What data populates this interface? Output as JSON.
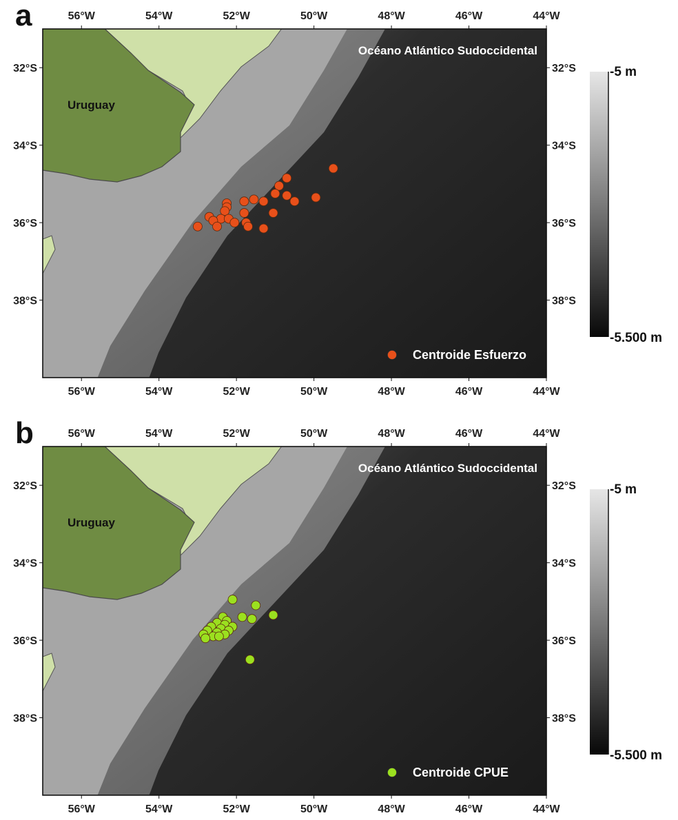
{
  "chart_data": [
    {
      "type": "scatter",
      "panel_label": "a",
      "region_label": "Océano Atlántico Sudoccidental",
      "country_label": "Uruguay",
      "xlim": [
        -57,
        -44
      ],
      "ylim": [
        -40,
        -31
      ],
      "x_ticks": [
        {
          "value": -56,
          "label": "56°W"
        },
        {
          "value": -54,
          "label": "54°W"
        },
        {
          "value": -52,
          "label": "52°W"
        },
        {
          "value": -50,
          "label": "50°W"
        },
        {
          "value": -48,
          "label": "48°W"
        },
        {
          "value": -46,
          "label": "46°W"
        },
        {
          "value": -44,
          "label": "44°W"
        }
      ],
      "y_ticks": [
        {
          "value": -32,
          "label": "32°S"
        },
        {
          "value": -34,
          "label": "34°S"
        },
        {
          "value": -36,
          "label": "36°S"
        },
        {
          "value": -38,
          "label": "38°S"
        }
      ],
      "colorbar": {
        "top_label": "-5 m",
        "bottom_label": "-5.500 m"
      },
      "series": [
        {
          "name": "Centroide Esfuerzo",
          "color": "#e8501a",
          "points": [
            {
              "x": -49.5,
              "y": -34.6
            },
            {
              "x": -50.7,
              "y": -34.85
            },
            {
              "x": -50.9,
              "y": -35.05
            },
            {
              "x": -51.0,
              "y": -35.25
            },
            {
              "x": -50.7,
              "y": -35.3
            },
            {
              "x": -49.95,
              "y": -35.35
            },
            {
              "x": -50.5,
              "y": -35.45
            },
            {
              "x": -51.3,
              "y": -35.45
            },
            {
              "x": -51.55,
              "y": -35.4
            },
            {
              "x": -51.8,
              "y": -35.45
            },
            {
              "x": -52.25,
              "y": -35.5
            },
            {
              "x": -52.25,
              "y": -35.6
            },
            {
              "x": -52.3,
              "y": -35.7
            },
            {
              "x": -51.8,
              "y": -35.75
            },
            {
              "x": -51.05,
              "y": -35.75
            },
            {
              "x": -52.7,
              "y": -35.85
            },
            {
              "x": -52.4,
              "y": -35.9
            },
            {
              "x": -52.2,
              "y": -35.9
            },
            {
              "x": -52.6,
              "y": -35.95
            },
            {
              "x": -52.05,
              "y": -36.0
            },
            {
              "x": -51.75,
              "y": -36.0
            },
            {
              "x": -53.0,
              "y": -36.1
            },
            {
              "x": -52.5,
              "y": -36.1
            },
            {
              "x": -51.7,
              "y": -36.1
            },
            {
              "x": -51.3,
              "y": -36.15
            }
          ]
        }
      ]
    },
    {
      "type": "scatter",
      "panel_label": "b",
      "region_label": "Océano Atlántico Sudoccidental",
      "country_label": "Uruguay",
      "xlim": [
        -57,
        -44
      ],
      "ylim": [
        -40,
        -31
      ],
      "x_ticks": [
        {
          "value": -56,
          "label": "56°W"
        },
        {
          "value": -54,
          "label": "54°W"
        },
        {
          "value": -52,
          "label": "52°W"
        },
        {
          "value": -50,
          "label": "50°W"
        },
        {
          "value": -48,
          "label": "48°W"
        },
        {
          "value": -46,
          "label": "46°W"
        },
        {
          "value": -44,
          "label": "44°W"
        }
      ],
      "y_ticks": [
        {
          "value": -32,
          "label": "32°S"
        },
        {
          "value": -34,
          "label": "34°S"
        },
        {
          "value": -36,
          "label": "36°S"
        },
        {
          "value": -38,
          "label": "38°S"
        }
      ],
      "colorbar": {
        "top_label": "-5 m",
        "bottom_label": "-5.500 m"
      },
      "series": [
        {
          "name": "Centroide CPUE",
          "color": "#9be01f",
          "points": [
            {
              "x": -52.1,
              "y": -34.95
            },
            {
              "x": -51.5,
              "y": -35.1
            },
            {
              "x": -51.05,
              "y": -35.35
            },
            {
              "x": -51.85,
              "y": -35.4
            },
            {
              "x": -51.6,
              "y": -35.45
            },
            {
              "x": -52.35,
              "y": -35.4
            },
            {
              "x": -52.25,
              "y": -35.5
            },
            {
              "x": -52.5,
              "y": -35.55
            },
            {
              "x": -52.3,
              "y": -35.6
            },
            {
              "x": -52.1,
              "y": -35.65
            },
            {
              "x": -52.65,
              "y": -35.65
            },
            {
              "x": -52.4,
              "y": -35.7
            },
            {
              "x": -52.2,
              "y": -35.75
            },
            {
              "x": -52.75,
              "y": -35.75
            },
            {
              "x": -52.5,
              "y": -35.8
            },
            {
              "x": -52.3,
              "y": -35.85
            },
            {
              "x": -52.85,
              "y": -35.85
            },
            {
              "x": -52.6,
              "y": -35.9
            },
            {
              "x": -52.8,
              "y": -35.95
            },
            {
              "x": -52.45,
              "y": -35.9
            },
            {
              "x": -51.65,
              "y": -36.5
            }
          ]
        }
      ]
    }
  ]
}
